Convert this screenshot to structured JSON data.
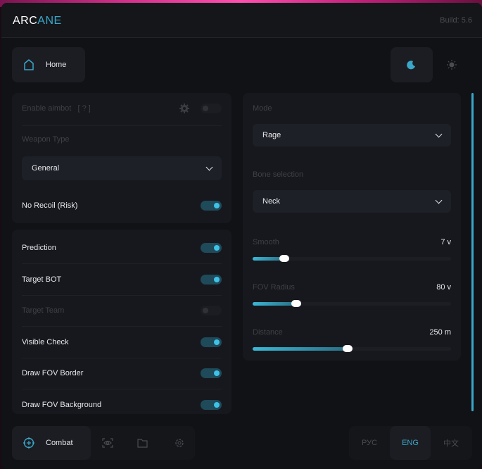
{
  "header": {
    "logo_part1": "ARC",
    "logo_part2": "ANE",
    "build": "Build: 5.6"
  },
  "nav": {
    "home": "Home",
    "theme_dark_icon": "moon-icon",
    "theme_light_icon": "sun-icon"
  },
  "left_card1": {
    "enable_aimbot": "Enable aimbot",
    "help": "[ ? ]",
    "enable_aimbot_on": false,
    "weapon_type_label": "Weapon Type",
    "weapon_type_value": "General",
    "no_recoil": "No Recoil (Risk)",
    "no_recoil_on": true
  },
  "left_card2": {
    "items": [
      {
        "label": "Prediction",
        "on": true,
        "enabled": true
      },
      {
        "label": "Target BOT",
        "on": true,
        "enabled": true
      },
      {
        "label": "Target Team",
        "on": false,
        "enabled": false
      },
      {
        "label": "Visible Check",
        "on": true,
        "enabled": true
      },
      {
        "label": "Draw FOV Border",
        "on": true,
        "enabled": true
      },
      {
        "label": "Draw FOV Background",
        "on": true,
        "enabled": true
      }
    ]
  },
  "right_card": {
    "mode_label": "Mode",
    "mode_value": "Rage",
    "bone_label": "Bone selection",
    "bone_value": "Neck",
    "sliders": [
      {
        "label": "Smooth",
        "value": "7 v",
        "fraction": 0.16
      },
      {
        "label": "FOV Radius",
        "value": "80 v",
        "fraction": 0.22
      },
      {
        "label": "Distance",
        "value": "250 m",
        "fraction": 0.48
      }
    ]
  },
  "footer": {
    "combat": "Combat",
    "tabs": [
      "eye-icon",
      "folder-icon",
      "gear-icon"
    ],
    "languages": [
      "РУС",
      "ENG",
      "中文"
    ],
    "active_language": "ENG"
  },
  "colors": {
    "accent": "#3aa7c9",
    "background": "#111216"
  }
}
